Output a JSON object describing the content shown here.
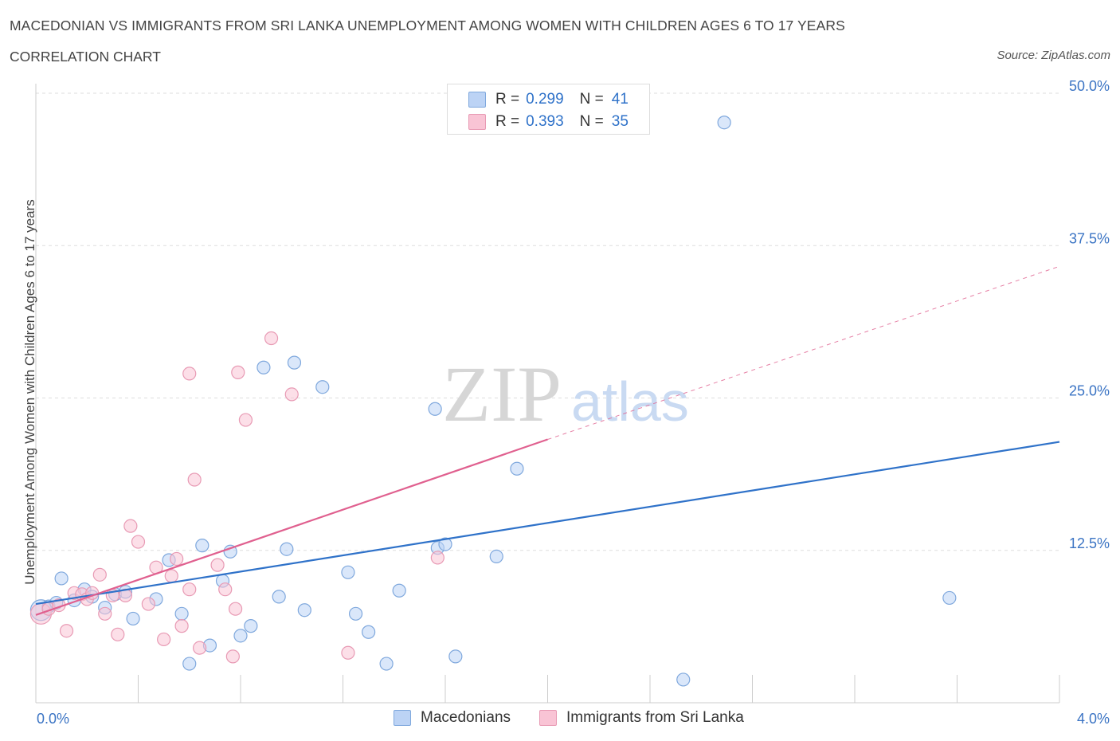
{
  "header": {
    "title": "MACEDONIAN VS IMMIGRANTS FROM SRI LANKA UNEMPLOYMENT AMONG WOMEN WITH CHILDREN AGES 6 TO 17 YEARS",
    "subtitle": "CORRELATION CHART",
    "source": "Source: ZipAtlas.com"
  },
  "watermark": {
    "zip": "ZIP",
    "atlas": "atlas"
  },
  "legend": {
    "rows": [
      {
        "r_label": "R =",
        "r_value": "0.299",
        "n_label": "N =",
        "n_value": "41"
      },
      {
        "r_label": "R =",
        "r_value": "0.393",
        "n_label": "N =",
        "n_value": "35"
      }
    ]
  },
  "bottom_legend": {
    "series1": "Macedonians",
    "series2": "Immigrants from Sri Lanka"
  },
  "colors": {
    "blue_fill": "#bcd3f5",
    "blue_stroke": "#7fa8dd",
    "blue_line": "#2f72c9",
    "pink_fill": "#f9c4d5",
    "pink_stroke": "#e89ab4",
    "pink_line": "#e0608f",
    "axis_text": "#3b74c4",
    "grid": "#dddddd"
  },
  "chart_data": {
    "type": "scatter",
    "title": "MACEDONIAN VS IMMIGRANTS FROM SRI LANKA UNEMPLOYMENT AMONG WOMEN WITH CHILDREN AGES 6 TO 17 YEARS",
    "ylabel": "Unemployment Among Women with Children Ages 6 to 17 years",
    "xlabel": "",
    "xlim": [
      0,
      4.0
    ],
    "ylim": [
      0,
      50
    ],
    "x_tick_labels": [
      "0.0%",
      "4.0%"
    ],
    "y_ticks": [
      12.5,
      25.0,
      37.5,
      50.0
    ],
    "y_tick_labels": [
      "12.5%",
      "25.0%",
      "37.5%",
      "50.0%"
    ],
    "grid": true,
    "legend_position": "top-center",
    "series": [
      {
        "name": "Macedonians",
        "r": 0.299,
        "n": 41,
        "trend": {
          "x0": 0.0,
          "y0": 8.1,
          "x1": 4.0,
          "y1": 21.4
        },
        "points": [
          [
            0.02,
            7.6
          ],
          [
            0.05,
            7.9
          ],
          [
            0.08,
            8.2
          ],
          [
            0.1,
            10.2
          ],
          [
            0.15,
            8.4
          ],
          [
            0.19,
            9.3
          ],
          [
            0.22,
            8.7
          ],
          [
            0.27,
            7.8
          ],
          [
            0.31,
            8.9
          ],
          [
            0.35,
            9.1
          ],
          [
            0.38,
            6.9
          ],
          [
            0.47,
            8.5
          ],
          [
            0.52,
            11.7
          ],
          [
            0.57,
            7.3
          ],
          [
            0.6,
            3.2
          ],
          [
            0.65,
            12.9
          ],
          [
            0.68,
            4.7
          ],
          [
            0.73,
            10.0
          ],
          [
            0.76,
            12.4
          ],
          [
            0.8,
            5.5
          ],
          [
            0.84,
            6.3
          ],
          [
            0.89,
            27.5
          ],
          [
            0.95,
            8.7
          ],
          [
            0.98,
            12.6
          ],
          [
            1.01,
            27.9
          ],
          [
            1.05,
            7.6
          ],
          [
            1.12,
            25.9
          ],
          [
            1.22,
            10.7
          ],
          [
            1.25,
            7.3
          ],
          [
            1.3,
            5.8
          ],
          [
            1.37,
            3.2
          ],
          [
            1.42,
            9.2
          ],
          [
            1.56,
            24.1
          ],
          [
            1.57,
            12.7
          ],
          [
            1.6,
            13.0
          ],
          [
            1.64,
            3.8
          ],
          [
            1.8,
            12.0
          ],
          [
            1.88,
            19.2
          ],
          [
            2.53,
            1.9
          ],
          [
            2.69,
            47.6
          ],
          [
            3.57,
            8.6
          ]
        ]
      },
      {
        "name": "Immigrants from Sri Lanka",
        "r": 0.393,
        "n": 35,
        "trend": {
          "x0": 0.0,
          "y0": 7.2,
          "x1": 2.0,
          "y1": 21.6
        },
        "trend_dashed": {
          "x0": 2.0,
          "y0": 21.6,
          "x1": 4.0,
          "y1": 35.8
        },
        "points": [
          [
            0.02,
            7.3
          ],
          [
            0.05,
            7.7
          ],
          [
            0.09,
            8.0
          ],
          [
            0.12,
            5.9
          ],
          [
            0.15,
            9.0
          ],
          [
            0.18,
            8.9
          ],
          [
            0.2,
            8.5
          ],
          [
            0.22,
            9.0
          ],
          [
            0.25,
            10.5
          ],
          [
            0.27,
            7.3
          ],
          [
            0.3,
            8.8
          ],
          [
            0.32,
            5.6
          ],
          [
            0.35,
            8.8
          ],
          [
            0.37,
            14.5
          ],
          [
            0.4,
            13.2
          ],
          [
            0.44,
            8.1
          ],
          [
            0.47,
            11.1
          ],
          [
            0.5,
            5.2
          ],
          [
            0.53,
            10.4
          ],
          [
            0.55,
            11.8
          ],
          [
            0.57,
            6.3
          ],
          [
            0.6,
            9.3
          ],
          [
            0.62,
            18.3
          ],
          [
            0.64,
            4.5
          ],
          [
            0.71,
            11.3
          ],
          [
            0.74,
            9.3
          ],
          [
            0.77,
            3.8
          ],
          [
            0.78,
            7.7
          ],
          [
            0.79,
            27.1
          ],
          [
            0.82,
            23.2
          ],
          [
            0.92,
            29.9
          ],
          [
            1.0,
            25.3
          ],
          [
            1.22,
            4.1
          ],
          [
            1.57,
            11.9
          ],
          [
            0.6,
            27.0
          ]
        ]
      }
    ]
  }
}
